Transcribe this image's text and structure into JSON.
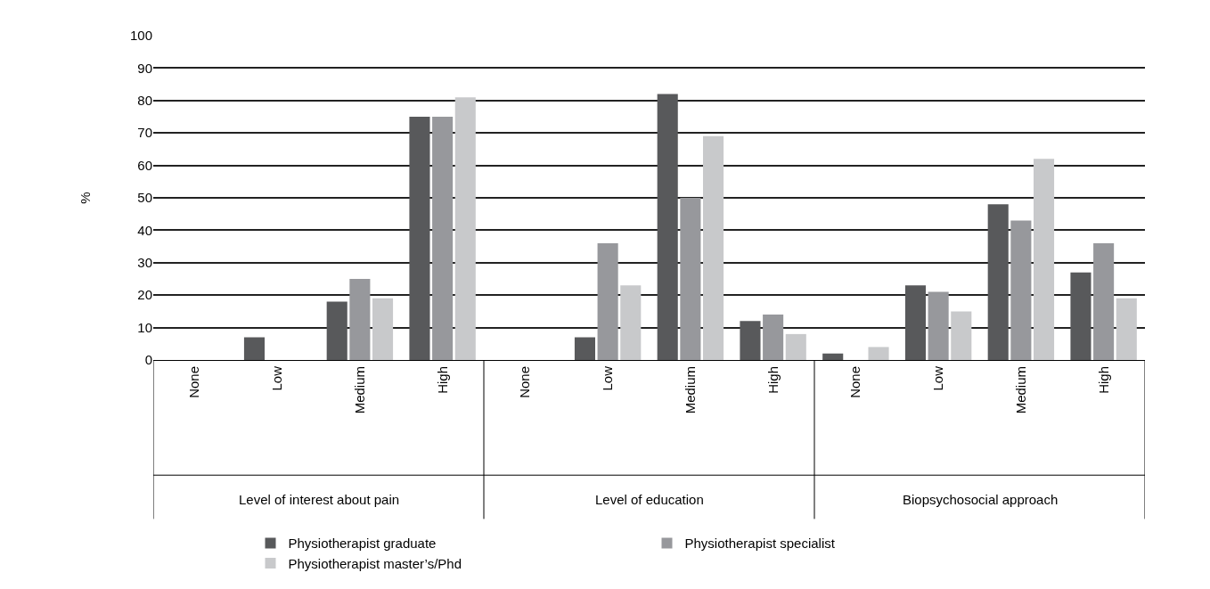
{
  "chart_data": {
    "type": "bar",
    "ylabel": "%",
    "categories": [
      "None",
      "Low",
      "Medium",
      "High",
      "None",
      "Low",
      "Medium",
      "High",
      "None",
      "Low",
      "Medium",
      "High"
    ],
    "annotations": [
      "Level of interest about pain",
      "Level of education",
      "Biopsychosocial approach"
    ],
    "series": [
      {
        "name": "Physiotherapist graduate",
        "color": "#58595b",
        "values": [
          0,
          7,
          18,
          75,
          0,
          7,
          82,
          12,
          2,
          23,
          48,
          27
        ]
      },
      {
        "name": "Physiotherapist specialist",
        "color": "#97989c",
        "values": [
          0,
          0,
          25,
          75,
          0,
          36,
          50,
          14,
          0,
          21,
          43,
          36
        ]
      },
      {
        "name": "Physiotherapist master’s/Phd",
        "color": "#c8c9cb",
        "values": [
          0,
          0,
          19,
          81,
          0,
          23,
          69,
          8,
          4,
          15,
          62,
          19
        ]
      }
    ],
    "ylim": [
      0,
      100
    ],
    "yticks": [
      0,
      10,
      20,
      30,
      40,
      50,
      60,
      70,
      80,
      90,
      100
    ],
    "grid": "y",
    "legend": "bottom"
  }
}
